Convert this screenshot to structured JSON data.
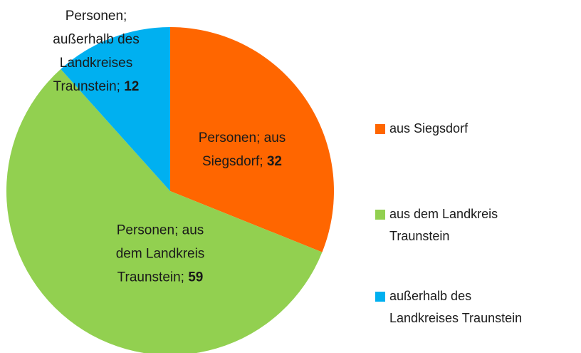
{
  "chart_data": {
    "type": "pie",
    "series_name": "Personen",
    "label_separator": "; ",
    "categories": [
      "aus Siegsdorf",
      "aus dem Landkreis Traunstein",
      "außerhalb des Landkreises Traunstein"
    ],
    "values": [
      32,
      59,
      12
    ],
    "colors": [
      "#ff6600",
      "#92d050",
      "#00b0f0"
    ],
    "legend": "right"
  }
}
